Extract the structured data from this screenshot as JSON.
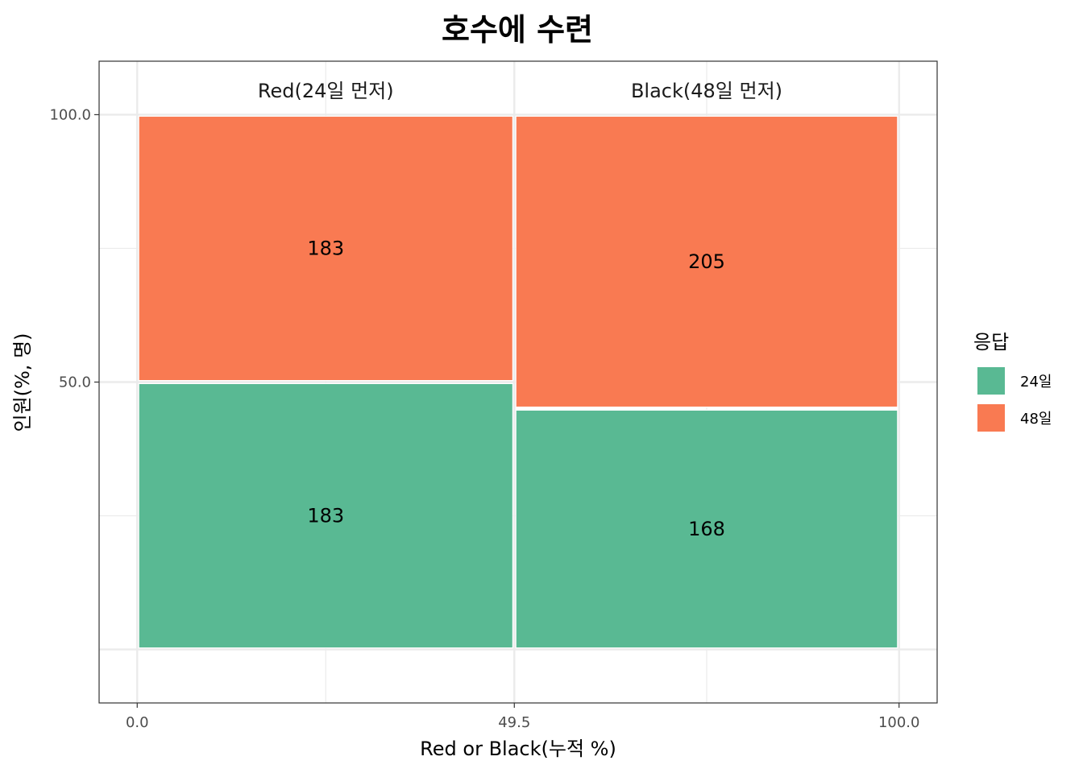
{
  "chart_data": {
    "type": "mosaic",
    "title": "호수에 수련",
    "xlabel": "Red or Black(누적 %)",
    "ylabel": "인원(%, 명)",
    "x_ticks": [
      "0.0",
      "49.5",
      "100.0"
    ],
    "y_ticks": [
      "50.0",
      "100.0"
    ],
    "xlim": [
      -5,
      105
    ],
    "ylim": [
      -10,
      110
    ],
    "columns": [
      {
        "name": "Red(24일 먼저)",
        "x_start": 0,
        "x_end": 49.5,
        "segments": [
          {
            "response": "24일",
            "count": 183,
            "y_start": 0,
            "y_end": 50
          },
          {
            "response": "48일",
            "count": 183,
            "y_start": 50,
            "y_end": 100
          }
        ]
      },
      {
        "name": "Black(48일 먼저)",
        "x_start": 49.5,
        "x_end": 100,
        "segments": [
          {
            "response": "24일",
            "count": 168,
            "y_start": 0,
            "y_end": 45.04
          },
          {
            "response": "48일",
            "count": 205,
            "y_start": 45.04,
            "y_end": 100
          }
        ]
      }
    ],
    "legend": {
      "title": "응답",
      "position": "right",
      "entries": [
        {
          "label": "24일",
          "color": "#59b993"
        },
        {
          "label": "48일",
          "color": "#f97a52"
        }
      ]
    },
    "colors": {
      "24일": "#59b993",
      "48일": "#f97a52"
    }
  }
}
